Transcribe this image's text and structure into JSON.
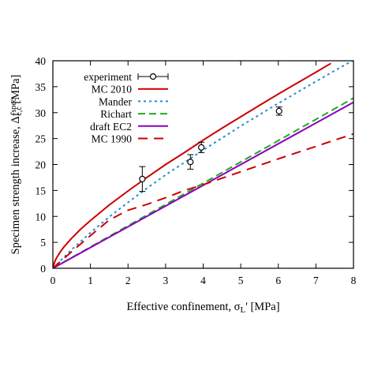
{
  "chart_data": {
    "type": "line",
    "xlabel_main": "Effective confinement, σ",
    "xlabel_sub": "L",
    "xlabel_prime": "'",
    "xlabel_unit": " [MPa]",
    "ylabel_main": "Specimen strength increase, Δf",
    "ylabel_sub": "c,c",
    "ylabel_sup": "spec",
    "ylabel_unit": " [MPa]",
    "xlim": [
      0,
      8
    ],
    "ylim": [
      0,
      40
    ],
    "xticks": [
      "0",
      "1",
      "2",
      "3",
      "4",
      "5",
      "6",
      "7",
      "8"
    ],
    "yticks": [
      "0",
      "5",
      "10",
      "15",
      "20",
      "25",
      "30",
      "35",
      "40"
    ],
    "legend_position": "top-left",
    "series": [
      {
        "name": "experiment",
        "kind": "errorbar",
        "color": "#000000",
        "points": [
          {
            "x": 2.38,
            "y": 17.2,
            "yerr": 2.4,
            "xerr": 0.0
          },
          {
            "x": 3.66,
            "y": 20.5,
            "yerr": 1.4,
            "xerr": 0.0
          },
          {
            "x": 3.95,
            "y": 23.3,
            "yerr": 1.0,
            "xerr": 0.0
          },
          {
            "x": 6.02,
            "y": 30.3,
            "yerr": 0.8,
            "xerr": 0.0
          }
        ]
      },
      {
        "name": "MC 2010",
        "kind": "line",
        "color": "#cc0000",
        "dash": "",
        "x": [
          0,
          0.05,
          0.1,
          0.2,
          0.3,
          0.5,
          0.75,
          1,
          1.5,
          2,
          2.5,
          3,
          3.5,
          4,
          4.5,
          5,
          5.5,
          6,
          6.5,
          7,
          7.4
        ],
        "y": [
          0,
          1.27,
          2.04,
          3.2,
          4.17,
          5.8,
          7.6,
          9.2,
          12.2,
          14.9,
          17.5,
          20.0,
          22.3,
          24.7,
          27.0,
          29.2,
          31.4,
          33.6,
          35.7,
          37.8,
          39.5
        ]
      },
      {
        "name": "Mander",
        "kind": "line",
        "color": "#1f8fd0",
        "dash": "3,4",
        "x": [
          0,
          0.5,
          1,
          1.5,
          2,
          2.5,
          3,
          3.5,
          4,
          4.5,
          5,
          5.5,
          6,
          6.5,
          7,
          7.5,
          8
        ],
        "y": [
          0,
          3.6,
          6.85,
          9.9,
          12.7,
          15.4,
          18.0,
          20.4,
          22.8,
          25.1,
          27.4,
          29.6,
          31.8,
          33.9,
          36.0,
          38.1,
          40.1
        ]
      },
      {
        "name": "Richart",
        "kind": "line",
        "color": "#22aa22",
        "dash": "9,5",
        "x": [
          0,
          8
        ],
        "y": [
          0,
          32.8
        ]
      },
      {
        "name": "draft EC2",
        "kind": "line",
        "color": "#8800bb",
        "dash": "",
        "x": [
          0,
          8
        ],
        "y": [
          0,
          32.0
        ]
      },
      {
        "name": "MC 1990",
        "kind": "line",
        "color": "#cc0000",
        "dash": "12,8",
        "x": [
          0,
          0.5,
          1,
          1.5,
          2,
          2.5,
          3,
          3.5,
          4,
          5,
          6,
          7,
          8
        ],
        "y": [
          0,
          3.2,
          6.3,
          9.3,
          11.2,
          12.3,
          13.6,
          15.0,
          16.1,
          18.6,
          21.1,
          23.5,
          25.9
        ]
      }
    ]
  }
}
